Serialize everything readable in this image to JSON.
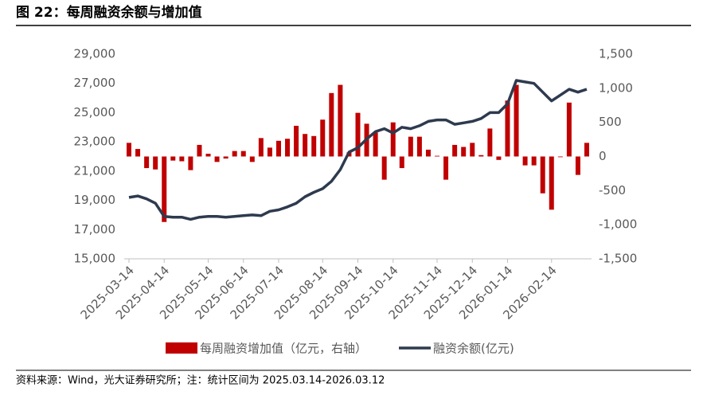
{
  "chart_data": {
    "type": "bar_line",
    "title": "图 22：每周融资余额与增加值",
    "source": "资料来源：Wind，光大证券研究所；注：统计区间为 2025.03.14-2026.03.12",
    "categories": [
      "2025-03-14",
      null,
      null,
      null,
      "2025-04-14",
      null,
      null,
      null,
      null,
      "2025-05-14",
      null,
      null,
      null,
      "2025-06-14",
      null,
      null,
      null,
      "2025-07-14",
      null,
      null,
      null,
      null,
      "2025-08-14",
      null,
      null,
      null,
      "2025-09-14",
      null,
      null,
      null,
      "2025-10-14",
      null,
      null,
      null,
      null,
      "2025-11-14",
      null,
      null,
      null,
      "2025-12-14",
      null,
      null,
      null,
      "2026-01-14",
      null,
      null,
      null,
      null,
      "2026-02-14",
      null,
      null,
      null,
      null
    ],
    "series": [
      {
        "name": "每周融资增加值（亿元，右轴）",
        "color": "#c00000",
        "axis": "y2",
        "kind": "bar",
        "values": [
          200,
          110,
          -170,
          -190,
          -960,
          -60,
          -70,
          -200,
          170,
          40,
          -80,
          -30,
          80,
          80,
          -80,
          270,
          130,
          230,
          260,
          450,
          330,
          300,
          540,
          930,
          1050,
          60,
          640,
          480,
          350,
          -340,
          500,
          -170,
          290,
          290,
          100,
          10,
          -340,
          170,
          140,
          200,
          20,
          410,
          -50,
          820,
          1050,
          -130,
          -130,
          -540,
          -780,
          -10,
          790,
          -270,
          200
        ]
      },
      {
        "name": "融资余额(亿元)",
        "color": "#2e3a4e",
        "kind": "line",
        "values": [
          19200,
          19300,
          19100,
          18800,
          17900,
          17850,
          17850,
          17700,
          17850,
          17900,
          17900,
          17850,
          17900,
          17950,
          18000,
          17950,
          18250,
          18350,
          18550,
          18800,
          19250,
          19550,
          19800,
          20300,
          21100,
          22300,
          22600,
          23200,
          23700,
          23900,
          23600,
          24000,
          23900,
          24100,
          24400,
          24500,
          24500,
          24200,
          24300,
          24400,
          24600,
          25000,
          25000,
          25600,
          27200,
          27100,
          27000,
          26400,
          25800,
          26200,
          26600,
          26400,
          26600
        ]
      }
    ],
    "ylim": [
      15000,
      29000
    ],
    "yticks": [
      {
        "value": 15000,
        "label": "15,000"
      },
      {
        "value": 17000,
        "label": "17,000"
      },
      {
        "value": 19000,
        "label": "19,000"
      },
      {
        "value": 21000,
        "label": "21,000"
      },
      {
        "value": 23000,
        "label": "23,000"
      },
      {
        "value": 25000,
        "label": "25,000"
      },
      {
        "value": 27000,
        "label": "27,000"
      },
      {
        "value": 29000,
        "label": "29,000"
      }
    ],
    "y2lim": [
      -1500,
      1500
    ],
    "y2ticks": [
      {
        "value": -1500,
        "label": "-1,500"
      },
      {
        "value": -1000,
        "label": "-1,000"
      },
      -500,
      0,
      500,
      {
        "value": 1000,
        "label": "1,000"
      },
      {
        "value": 1500,
        "label": "1,500"
      }
    ]
  }
}
